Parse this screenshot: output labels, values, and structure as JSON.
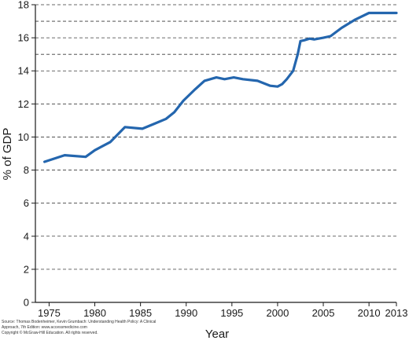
{
  "chart_data": {
    "type": "line",
    "xlabel": "Year",
    "ylabel": "% of GDP",
    "xlim": [
      1973.5,
      2013
    ],
    "ylim": [
      0,
      18
    ],
    "x_ticks": [
      1975,
      1980,
      1985,
      1990,
      1995,
      2000,
      2005,
      2010,
      2013
    ],
    "x_tick_labels": [
      "1975",
      "1980",
      "1985",
      "1990",
      "1995",
      "2000",
      "2005",
      "2010",
      "2013"
    ],
    "y_ticks": [
      0,
      2,
      4,
      6,
      8,
      10,
      12,
      14,
      16,
      18
    ],
    "y_tick_labels": [
      "0",
      "2",
      "4",
      "6",
      "8",
      "10",
      "12",
      "14",
      "16",
      "18"
    ],
    "extra_gridlines": [
      15,
      17
    ],
    "grid": "horizontal dashed",
    "legend": "none",
    "series": [
      {
        "color": "#2466ae",
        "x": [
          1974.5,
          1976.7,
          1979,
          1980,
          1981.7,
          1983.3,
          1985.2,
          1986.5,
          1987.8,
          1988.7,
          1989.7,
          1991,
          1992,
          1993.3,
          1994.2,
          1995.2,
          1996.2,
          1997.8,
          1999.2,
          2000,
          2000.5,
          2001,
          2001.7,
          2002.2,
          2002.5,
          2002.9,
          2003.5,
          2004,
          2005,
          2005.8,
          2007,
          2008.5,
          2010,
          2013
        ],
        "y": [
          8.5,
          8.9,
          8.8,
          9.2,
          9.7,
          10.6,
          10.5,
          10.8,
          11.1,
          11.5,
          12.2,
          12.9,
          13.4,
          13.6,
          13.5,
          13.6,
          13.5,
          13.4,
          13.1,
          13.05,
          13.2,
          13.5,
          14.0,
          15.0,
          15.8,
          15.85,
          15.95,
          15.9,
          16.0,
          16.1,
          16.6,
          17.1,
          17.5,
          17.5
        ]
      }
    ]
  },
  "source": {
    "line1": "Source: Thomas Bodenheimer, Kevin Grumbach: Understanding Health Policy: A Clinical",
    "line2": "Approach, 7th Edition: www.accessmedicine.com",
    "line3": "Copyright © McGraw-Hill Education. All rights reserved."
  }
}
